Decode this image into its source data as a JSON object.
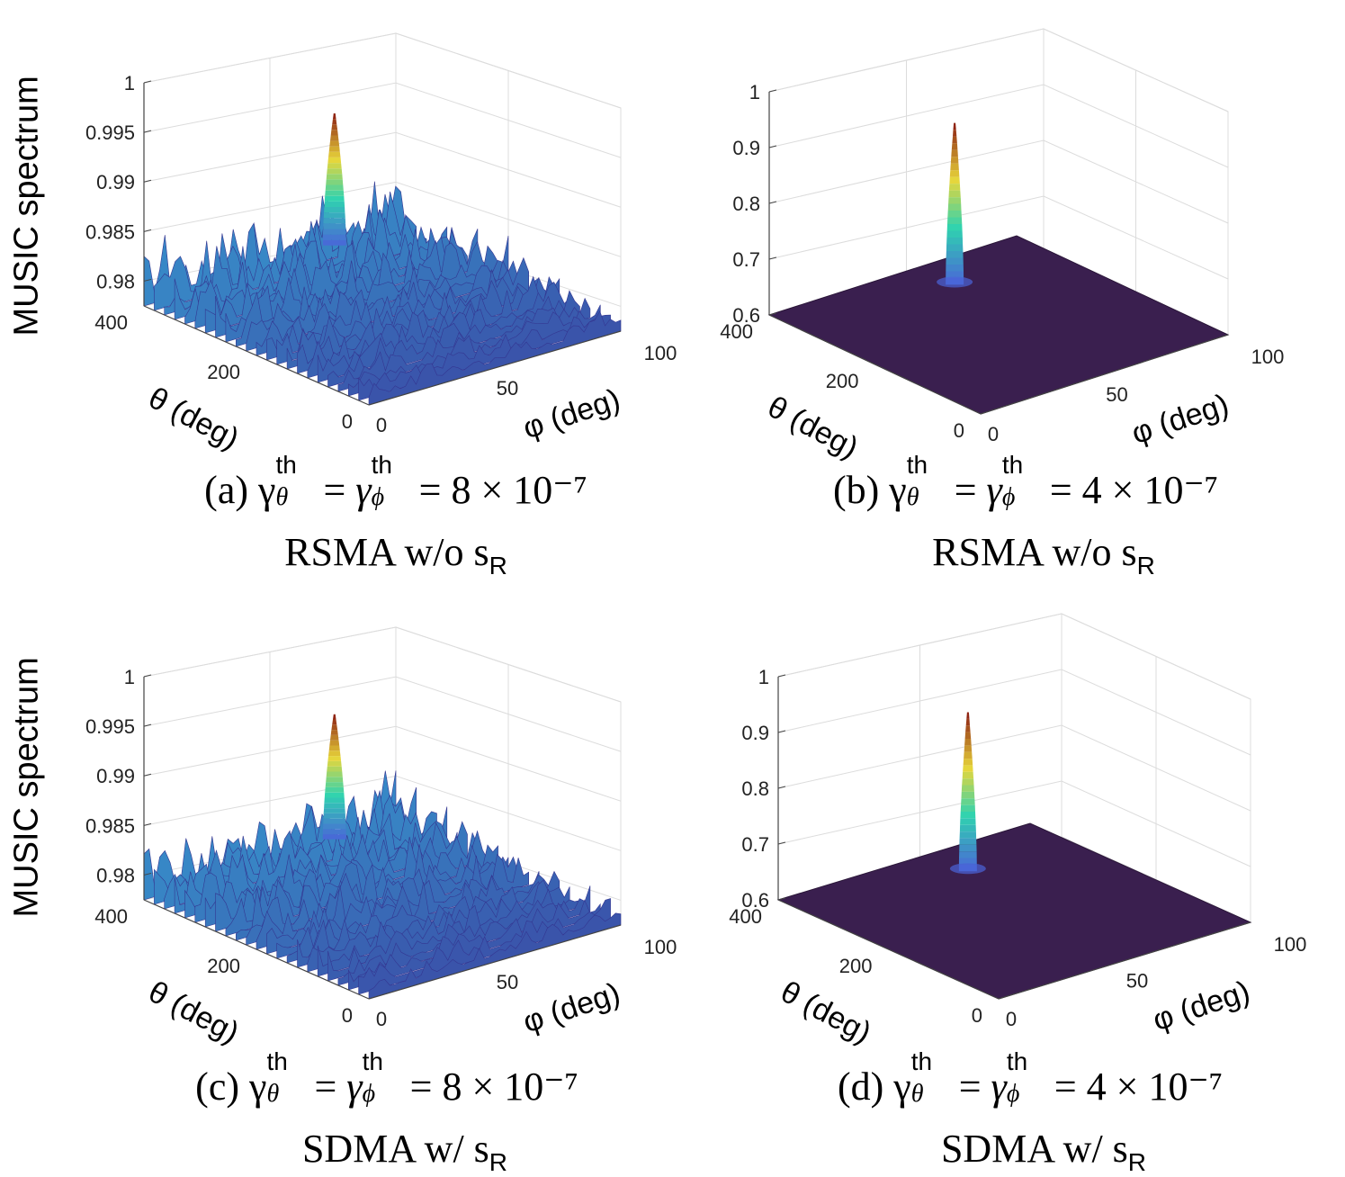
{
  "chart_data": [
    {
      "type": "surface",
      "panel": "a",
      "zlabel": "MUSIC spectrum",
      "xlabel": "φ  (deg)",
      "ylabel": "θ (deg)",
      "zlim": [
        0.9775,
        1.0
      ],
      "zticks": [
        "0.98",
        "0.985",
        "0.99",
        "0.995",
        "1"
      ],
      "xticks": [
        "0",
        "50",
        "100"
      ],
      "yticks": [
        "0",
        "200",
        "400"
      ],
      "peak": {
        "phi": 60,
        "theta": 330,
        "value": 0.9942
      },
      "floor": "noisy",
      "caption_prefix": "(a) γ",
      "caption_value": "= 8 × 10⁻⁷",
      "caption_scheme": "RSMA w/o s",
      "caption_sub": "R",
      "sup": "th",
      "sub_theta": "θ",
      "sub_phi": "ϕ"
    },
    {
      "type": "surface",
      "panel": "b",
      "zlabel": "",
      "xlabel": "φ  (deg)",
      "ylabel": "θ (deg)",
      "zlim": [
        0.6,
        1.0
      ],
      "zticks": [
        "0.6",
        "0.7",
        "0.8",
        "0.9",
        "1"
      ],
      "xticks": [
        "0",
        "50",
        "100"
      ],
      "yticks": [
        "0",
        "200",
        "400"
      ],
      "peak": {
        "phi": 60,
        "theta": 330,
        "value": 0.89
      },
      "floor": "flat",
      "caption_prefix": "(b) γ",
      "caption_value": "= 4 × 10⁻⁷",
      "caption_scheme": "RSMA w/o s",
      "caption_sub": "R",
      "sup": "th",
      "sub_theta": "θ",
      "sub_phi": "ϕ"
    },
    {
      "type": "surface",
      "panel": "c",
      "zlabel": "MUSIC spectrum",
      "xlabel": "φ  (deg)",
      "ylabel": "θ (deg)",
      "zlim": [
        0.9775,
        1.0
      ],
      "zticks": [
        "0.98",
        "0.985",
        "0.99",
        "0.995",
        "1"
      ],
      "xticks": [
        "0",
        "50",
        "100"
      ],
      "yticks": [
        "0",
        "200",
        "400"
      ],
      "peak": {
        "phi": 60,
        "theta": 330,
        "value": 0.9935
      },
      "floor": "noisy",
      "caption_prefix": "(c) γ",
      "caption_value": "= 8 × 10⁻⁷",
      "caption_scheme": "SDMA w/ s",
      "caption_sub": "R",
      "sup": "th",
      "sub_theta": "θ",
      "sub_phi": "ϕ"
    },
    {
      "type": "surface",
      "panel": "d",
      "zlabel": "",
      "xlabel": "φ  (deg)",
      "ylabel": "θ (deg)",
      "zlim": [
        0.6,
        1.0
      ],
      "zticks": [
        "0.6",
        "0.7",
        "0.8",
        "0.9",
        "1"
      ],
      "xticks": [
        "0",
        "50",
        "100"
      ],
      "yticks": [
        "0",
        "200",
        "400"
      ],
      "peak": {
        "phi": 60,
        "theta": 330,
        "value": 0.885
      },
      "floor": "flat",
      "caption_prefix": "(d) γ",
      "caption_value": "= 4 × 10⁻⁷",
      "caption_scheme": "SDMA w/ s",
      "caption_sub": "R",
      "sup": "th",
      "sub_theta": "θ",
      "sub_phi": "ϕ"
    }
  ],
  "colors": {
    "floor_dark": "#3a1f4f",
    "noise_low": "#3b3d9e",
    "noise_high": "#35b8e0",
    "peak_low": "#4a64d8",
    "peak_mid": "#2fd3b0",
    "peak_upper": "#e8d63a",
    "peak_top": "#8a1a10",
    "grid": "#dcdcdc",
    "axis": "#444444"
  }
}
